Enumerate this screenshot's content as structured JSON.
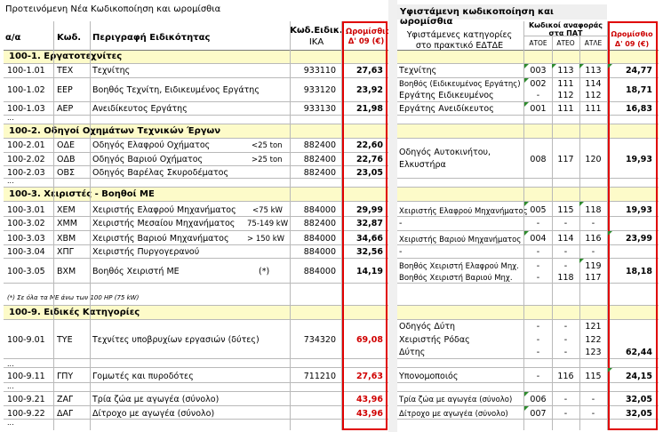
{
  "left_title": "Προτεινόμενη Νέα Κωδικοποίηση και ωρομίσθια",
  "right_title": "Υφιστάμενη κωδικοποίηση και ωρομίσθια",
  "left_headers": {
    "aa": "α/α",
    "code": "Κωδ.",
    "desc": "Περιγραφή Ειδικότητας",
    "ika_line1": "Κωδ.Ειδικ.",
    "ika_line2": "ΙΚΑ",
    "wage_line1": "Ωρομίσθιο",
    "wage_line2": "Δ' 09 (€)"
  },
  "right_headers": {
    "cat_line1": "Υφιστάμενες κατηγορίες",
    "cat_line2": "στο πρακτικό ΕΔΤΔΕ",
    "ref_line1": "Κωδικοί αναφοράς",
    "ref_line2": "στα ΠΑΤ",
    "atoe": "ΑΤΟΕ",
    "ateo": "ΑΤΕΟ",
    "atle": "ΑΤΛΕ",
    "wage_line1": "Ωρομίσθιο",
    "wage_line2": "Δ' 09 (€)"
  },
  "sections": {
    "s1": "100-1. Εργατοτεχνίτες",
    "s2": "100-2. Οδηγοί Οχημάτων Τεχνικών Έργων",
    "s3": "100-3. Χειριστές - Βοηθοί ΜΕ",
    "s9": "100-9. Ειδικές Κατηγορίες"
  },
  "note": "(*)      Σε όλα τα ΜΕ άνω των 100 HP (75 kW)",
  "dots": "...",
  "rows": {
    "r101": {
      "aa": "100-1.01",
      "code": "ΤΕΧ",
      "desc": "Τεχνίτης",
      "spec": "",
      "ika": "933110",
      "wage": "27,63"
    },
    "r102": {
      "aa": "100-1.02",
      "code": "ΕΕΡ",
      "desc": "Βοηθός Τεχνίτη, Ειδικευμένος Εργάτης",
      "spec": "",
      "ika": "933120",
      "wage": "23,92"
    },
    "r103": {
      "aa": "100-1.03",
      "code": "ΑΕΡ",
      "desc": "Ανειδίκευτος Εργάτης",
      "spec": "",
      "ika": "933130",
      "wage": "21,98"
    },
    "r201": {
      "aa": "100-2.01",
      "code": "ΟΔΕ",
      "desc": "Οδηγός Ελαφρού Οχήματος",
      "spec": "<25 ton",
      "ika": "882400",
      "wage": "22,60"
    },
    "r202": {
      "aa": "100-2.02",
      "code": "ΟΔΒ",
      "desc": "Οδηγός Βαριού Οχήματος",
      "spec": ">25 ton",
      "ika": "882400",
      "wage": "22,76"
    },
    "r203": {
      "aa": "100-2.03",
      "code": "ΟΒΣ",
      "desc": "Οδηγός Βαρέλας Σκυροδέματος",
      "spec": "",
      "ika": "882400",
      "wage": "23,05"
    },
    "r301": {
      "aa": "100-3.01",
      "code": "ΧΕΜ",
      "desc": "Χειριστής Ελαφρού Μηχανήματος",
      "spec": "<75 kW",
      "ika": "884000",
      "wage": "29,99"
    },
    "r302": {
      "aa": "100-3.02",
      "code": "ΧΜΜ",
      "desc": "Χειριστής Μεσαίου Μηχανήματος",
      "spec": "75-149 kW",
      "ika": "882400",
      "wage": "32,87"
    },
    "r303": {
      "aa": "100-3.03",
      "code": "ΧΒΜ",
      "desc": "Χειριστής Βαριού Μηχανήματος",
      "spec": "> 150 kW",
      "ika": "884000",
      "wage": "34,66"
    },
    "r304": {
      "aa": "100-3.04",
      "code": "ΧΠΓ",
      "desc": "Χειριστής Πυργογερανού",
      "spec": "",
      "ika": "884000",
      "wage": "32,56"
    },
    "r305": {
      "aa": "100-3.05",
      "code": "ΒΧΜ",
      "desc": "Βοηθός Χειριστή ΜΕ",
      "spec": "(*)",
      "ika": "884000",
      "wage": "14,19"
    },
    "r901": {
      "aa": "100-9.01",
      "code": "ΤΥΕ",
      "desc": "Τεχνίτες υποβρυχίων εργασιών (δύτες)",
      "spec": "",
      "ika": "734320",
      "wage": "69,08"
    },
    "r911": {
      "aa": "100-9.11",
      "code": "ΓΠΥ",
      "desc": "Γομωτές και πυροδότες",
      "spec": "",
      "ika": "711210",
      "wage": "27,63"
    },
    "r921": {
      "aa": "100-9.21",
      "code": "ΖΑΓ",
      "desc": "Τρία ζώα με αγωγέα (σύνολο)",
      "spec": "",
      "ika": "",
      "wage": "43,96"
    },
    "r922": {
      "aa": "100-9.22",
      "code": "ΔΑΓ",
      "desc": "Δίτροχο με αγωγέα (σύνολο)",
      "spec": "",
      "ika": "",
      "wage": "43,96"
    }
  },
  "right_rows": {
    "t1": {
      "cat": "Τεχνίτης",
      "atoe": "003",
      "ateo": "113",
      "atle": "113",
      "wage": "24,77"
    },
    "t2a": {
      "cat": "Βοηθός (Ειδικευμένος Εργάτης)",
      "atoe": "002",
      "ateo": "111",
      "atle": "114"
    },
    "t2b": {
      "cat": "Εργάτης Ειδικευμένος",
      "atoe": "-",
      "ateo": "112",
      "atle": "112",
      "wage": "18,71"
    },
    "t3": {
      "cat": "Εργάτης Ανειδίκευτος",
      "atoe": "001",
      "ateo": "111",
      "atle": "111",
      "wage": "16,83"
    },
    "t4a": {
      "cat": "Οδηγός Αυτοκινήτου,"
    },
    "t4b": {
      "cat": "Ελκυστήρα",
      "atoe": "008",
      "ateo": "117",
      "atle": "120",
      "wage": "19,93"
    },
    "t5": {
      "cat": "Χειριστής Ελαφρού Μηχανήματος",
      "atoe": "005",
      "ateo": "115",
      "atle": "118",
      "wage": "19,93"
    },
    "t6": {
      "cat": "-",
      "atoe": "-",
      "ateo": "-",
      "atle": "-"
    },
    "t7": {
      "cat": "Χειριστής Βαριού Μηχανήματος",
      "atoe": "004",
      "ateo": "114",
      "atle": "116",
      "wage": "23,99"
    },
    "t8": {
      "cat": "-",
      "atoe": "-",
      "ateo": "-",
      "atle": "-"
    },
    "t9a": {
      "cat": "Βοηθός Χειριστή Ελαφρού Μηχ.",
      "atoe": "-",
      "ateo": "-",
      "atle": "119"
    },
    "t9b": {
      "cat": "Βοηθός Χειριστή Βαριού Μηχ.",
      "atoe": "-",
      "ateo": "118",
      "atle": "117",
      "wage": "18,18"
    },
    "t10a": {
      "cat": "Οδηγός Δύτη",
      "atoe": "-",
      "ateo": "-",
      "atle": "121"
    },
    "t10b": {
      "cat": "Χειριστής Ρόδας",
      "atoe": "-",
      "ateo": "-",
      "atle": "122"
    },
    "t10c": {
      "cat": "Δύτης",
      "atoe": "-",
      "ateo": "-",
      "atle": "123",
      "wage": "62,44"
    },
    "t11": {
      "cat": "Υπονομοποιός",
      "atoe": "-",
      "ateo": "116",
      "atle": "115",
      "wage": "24,15"
    },
    "t12": {
      "cat": "Τρία ζώα με αγωγέα (σύνολο)",
      "atoe": "006",
      "ateo": "-",
      "atle": "-",
      "wage": "32,05"
    },
    "t13": {
      "cat": "Δίτροχο με αγωγέα (σύνολο)",
      "atoe": "007",
      "ateo": "-",
      "atle": "-",
      "wage": "32,05"
    }
  },
  "colors": {
    "band": "#fdfbc9",
    "redbox": "#e00000",
    "red_text": "#d00000",
    "flag": "#2e8b2e"
  }
}
